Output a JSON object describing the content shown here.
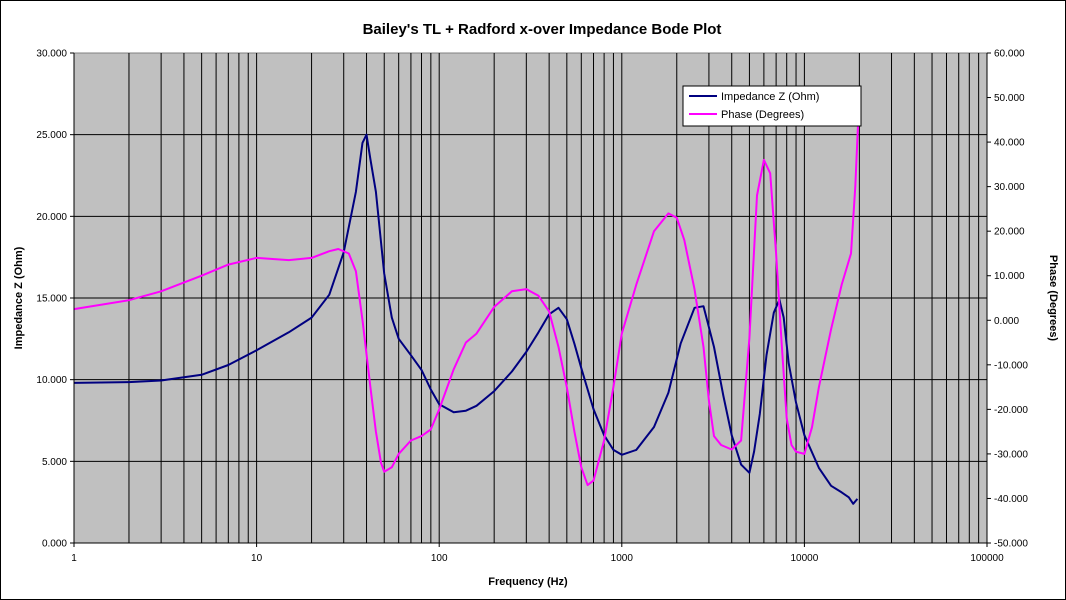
{
  "chart_data": {
    "type": "line",
    "title": "Bailey's TL + Radford x-over Impedance Bode Plot",
    "xlabel": "Frequency (Hz)",
    "ylabel": "Impedance Z (Ohm)",
    "y2label": "Phase (Degrees)",
    "xscale": "log",
    "xlim": [
      1,
      100000
    ],
    "ylim": [
      0,
      30
    ],
    "y2lim": [
      -50,
      60
    ],
    "grid": true,
    "legend_position": "top-right",
    "x_tick_labels": [
      "1",
      "10",
      "100",
      "1000",
      "10000",
      "100000"
    ],
    "y_tick_labels": [
      "0.000",
      "5.000",
      "10.000",
      "15.000",
      "20.000",
      "25.000",
      "30.000"
    ],
    "y2_tick_labels": [
      "-50.000",
      "-40.000",
      "-30.000",
      "-20.000",
      "-10.000",
      "0.000",
      "10.000",
      "20.000",
      "30.000",
      "40.000",
      "50.000",
      "60.000"
    ],
    "colors": {
      "plot_background": "#c0c0c0",
      "impedance": "#000080",
      "phase": "#ff00ff"
    },
    "series": [
      {
        "name": "Impedance Z (Ohm)",
        "axis": "left",
        "color": "#000080",
        "x": [
          1,
          2,
          3,
          5,
          7,
          10,
          15,
          20,
          25,
          30,
          35,
          38,
          40,
          42,
          45,
          50,
          55,
          60,
          70,
          80,
          90,
          100,
          120,
          140,
          160,
          200,
          250,
          300,
          350,
          400,
          450,
          500,
          550,
          600,
          700,
          800,
          900,
          1000,
          1200,
          1500,
          1800,
          2100,
          2500,
          2800,
          3200,
          3600,
          4000,
          4500,
          5000,
          5300,
          5700,
          6200,
          6800,
          7300,
          7700,
          8200,
          9000,
          10000,
          12000,
          14000,
          16000,
          17500,
          18500,
          19500
        ],
        "values": [
          9.8,
          9.85,
          9.95,
          10.3,
          10.9,
          11.8,
          12.9,
          13.8,
          15.2,
          17.8,
          21.5,
          24.5,
          25.0,
          23.5,
          21.5,
          16.5,
          13.8,
          12.5,
          11.5,
          10.6,
          9.4,
          8.5,
          8.0,
          8.1,
          8.4,
          9.3,
          10.5,
          11.7,
          12.9,
          14.0,
          14.4,
          13.7,
          12.2,
          10.7,
          8.2,
          6.6,
          5.7,
          5.4,
          5.7,
          7.1,
          9.2,
          12.2,
          14.4,
          14.5,
          12.0,
          9.0,
          6.6,
          4.8,
          4.3,
          5.6,
          7.9,
          11.5,
          14.1,
          14.9,
          13.8,
          11.0,
          8.6,
          6.6,
          4.6,
          3.5,
          3.1,
          2.8,
          2.4,
          2.7
        ]
      },
      {
        "name": "Phase (Degrees)",
        "axis": "right",
        "color": "#ff00ff",
        "x": [
          1,
          2,
          3,
          5,
          7,
          10,
          15,
          20,
          25,
          28,
          32,
          35,
          38,
          42,
          45,
          48,
          50,
          55,
          60,
          70,
          80,
          90,
          100,
          120,
          140,
          160,
          200,
          250,
          300,
          350,
          400,
          450,
          500,
          550,
          600,
          650,
          700,
          800,
          900,
          1000,
          1200,
          1500,
          1800,
          2000,
          2200,
          2500,
          2800,
          3000,
          3200,
          3500,
          4000,
          4500,
          5000,
          5500,
          6000,
          6500,
          7000,
          7500,
          8000,
          8500,
          9000,
          10000,
          11000,
          12000,
          14000,
          16000,
          18000,
          19000,
          20000
        ],
        "values": [
          2.5,
          4.5,
          6.5,
          10.0,
          12.5,
          14.0,
          13.5,
          14.0,
          15.5,
          16.0,
          15.0,
          11.0,
          0,
          -15.0,
          -25.0,
          -32.0,
          -34.0,
          -33.0,
          -30.0,
          -27.0,
          -26.0,
          -24.5,
          -20.0,
          -11.0,
          -5.0,
          -3.0,
          3.0,
          6.5,
          7.0,
          5.5,
          2.0,
          -6.0,
          -15.0,
          -25.0,
          -33.0,
          -37.0,
          -36.0,
          -27.0,
          -15.0,
          -3.0,
          8.0,
          20.0,
          24.0,
          23.0,
          18.0,
          7.0,
          -6.0,
          -18.0,
          -26.0,
          -28.0,
          -29.0,
          -27.0,
          -4.0,
          28.0,
          36.0,
          33.0,
          15.0,
          -5.0,
          -22.0,
          -28.0,
          -29.5,
          -30.0,
          -24.0,
          -15.0,
          -2.0,
          8.0,
          15.0,
          30.0,
          51.0
        ]
      }
    ]
  }
}
